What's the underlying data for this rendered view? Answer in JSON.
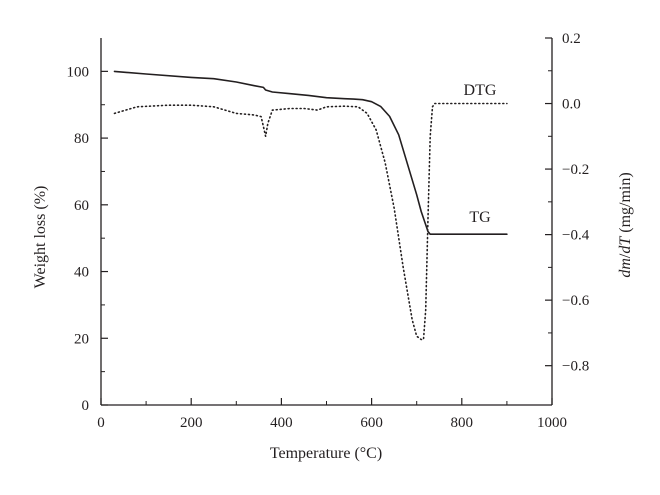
{
  "chart_data": {
    "type": "line",
    "xlabel": "Temperature (°C)",
    "ylabel": "Weight loss (%)",
    "y2label_parts": {
      "a": "dm",
      "b": "/",
      "c": "dT",
      "d": " (mg/min)"
    },
    "xlim": [
      0,
      1000
    ],
    "ylim": [
      0,
      110
    ],
    "y2lim": [
      -0.92,
      0.2
    ],
    "x_ticks": [
      0,
      200,
      400,
      600,
      800,
      1000
    ],
    "y_ticks": [
      0,
      20,
      40,
      60,
      80,
      100
    ],
    "y2_ticks": [
      0.2,
      0.0,
      -0.2,
      -0.4,
      -0.6,
      -0.8
    ],
    "x_tick_labels": [
      "0",
      "200",
      "400",
      "600",
      "800",
      "1000"
    ],
    "y_tick_labels": [
      "0",
      "20",
      "40",
      "60",
      "80",
      "100"
    ],
    "y2_tick_labels": [
      "0.2",
      "0.0",
      "−0.2",
      "−0.4",
      "−0.6",
      "−0.8"
    ],
    "grid": false,
    "colors": {
      "axis": "#231f20",
      "line": "#231f20"
    },
    "series": [
      {
        "name": "TG",
        "axis": "left",
        "style": "solid",
        "x": [
          30,
          100,
          200,
          250,
          300,
          340,
          360,
          365,
          380,
          420,
          460,
          500,
          540,
          560,
          580,
          600,
          620,
          640,
          660,
          680,
          700,
          710,
          720,
          725,
          730,
          750,
          800,
          850,
          900
        ],
        "y": [
          100,
          99.2,
          98.2,
          97.8,
          96.8,
          95.7,
          95.2,
          94.4,
          93.8,
          93.3,
          92.8,
          92.1,
          91.8,
          91.7,
          91.5,
          90.9,
          89.5,
          86.5,
          81,
          72,
          63,
          58,
          54,
          52,
          51.2,
          51.2,
          51.2,
          51.2,
          51.2
        ]
      },
      {
        "name": "DTG",
        "axis": "right",
        "style": "dotted",
        "x": [
          30,
          80,
          150,
          200,
          250,
          300,
          340,
          355,
          360,
          365,
          370,
          380,
          420,
          450,
          480,
          500,
          540,
          570,
          590,
          610,
          630,
          650,
          670,
          690,
          700,
          710,
          715,
          720,
          725,
          730,
          735,
          740,
          760,
          800,
          850,
          900
        ],
        "y": [
          -0.03,
          -0.01,
          -0.005,
          -0.005,
          -0.01,
          -0.03,
          -0.035,
          -0.04,
          -0.07,
          -0.1,
          -0.06,
          -0.02,
          -0.015,
          -0.015,
          -0.02,
          -0.01,
          -0.008,
          -0.01,
          -0.03,
          -0.08,
          -0.18,
          -0.32,
          -0.5,
          -0.66,
          -0.71,
          -0.72,
          -0.72,
          -0.63,
          -0.35,
          -0.1,
          -0.01,
          0.0,
          0.0,
          0.0,
          0.0,
          0.0
        ]
      }
    ]
  }
}
